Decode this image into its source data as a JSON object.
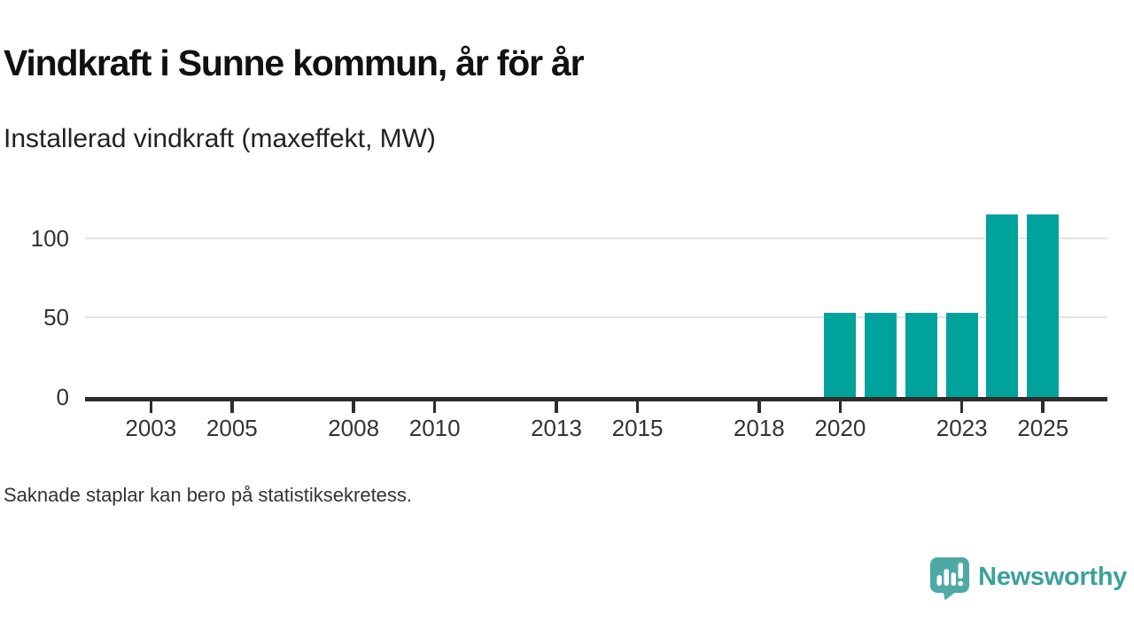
{
  "header": {
    "title": "Vindkraft i Sunne kommun, år för år",
    "subtitle": "Installerad vindkraft (maxeffekt, MW)"
  },
  "footnote": {
    "text": "Saknade staplar kan bero på statistiksekretess."
  },
  "branding": {
    "name": "Newsworthy",
    "icon": "newsworthy-speech-bubble-bar-chart-icon"
  },
  "colors": {
    "bar": "#00a39c",
    "axis": "#2d2d2d",
    "gridline": "#e4e4e4",
    "tick_label": "#333333",
    "logo_teal": "#4ea9a5",
    "logo_text_teal": "#3ba19d",
    "background": "#ffffff"
  },
  "chart_data": {
    "type": "bar",
    "title": "Vindkraft i Sunne kommun, år för år",
    "ylabel": "Installerad vindkraft (maxeffekt, MW)",
    "xlabel": "",
    "x_domain": [
      2002,
      2026
    ],
    "x_ticks": [
      2003,
      2005,
      2008,
      2010,
      2013,
      2015,
      2018,
      2020,
      2023,
      2025
    ],
    "y_ticks": [
      0,
      50,
      100
    ],
    "ylim": [
      0,
      126
    ],
    "grid": "horizontal-only",
    "legend": "none",
    "bars": [
      {
        "year": 2020,
        "value": 53
      },
      {
        "year": 2021,
        "value": 53
      },
      {
        "year": 2022,
        "value": 53
      },
      {
        "year": 2023,
        "value": 53
      },
      {
        "year": 2024,
        "value": 115
      },
      {
        "year": 2025,
        "value": 115
      }
    ]
  }
}
